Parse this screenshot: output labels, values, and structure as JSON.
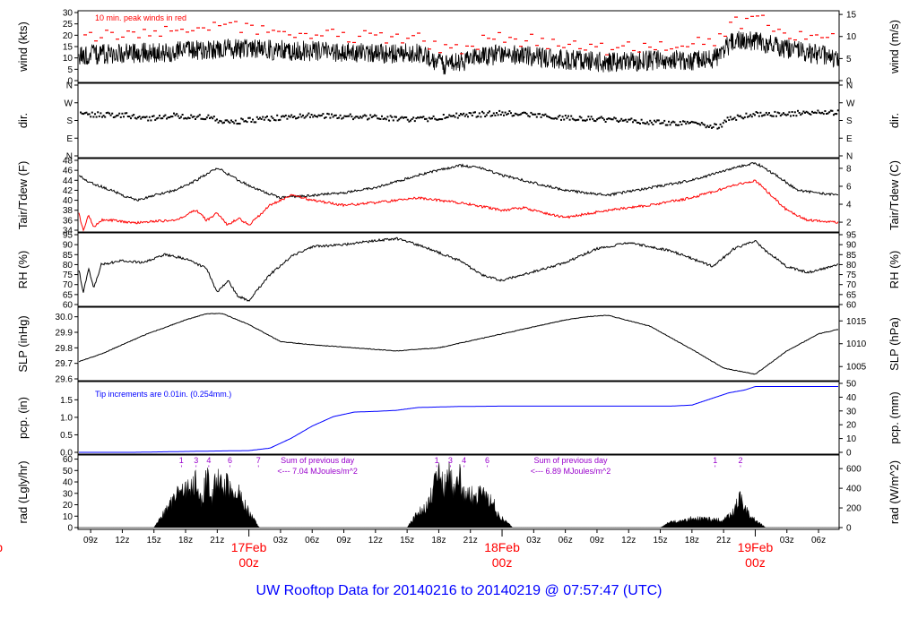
{
  "footer": {
    "title": "UW Rooftop Data for 20140216  to  20140219 @ 07:57:47  (UTC)"
  },
  "colors": {
    "axis": "#000000",
    "data": "#000000",
    "peak": "#ff0000",
    "dew": "#ff0000",
    "precip": "#0000ff",
    "note": "#9900cc",
    "date": "#ff0000"
  },
  "time_axis": {
    "range_hours": [
      7.8,
      79.95
    ],
    "ticks": [
      {
        "h": 9,
        "label": "09z"
      },
      {
        "h": 12,
        "label": "12z"
      },
      {
        "h": 15,
        "label": "15z"
      },
      {
        "h": 18,
        "label": "18z"
      },
      {
        "h": 21,
        "label": "21z"
      },
      {
        "h": 27,
        "label": "03z"
      },
      {
        "h": 30,
        "label": "06z"
      },
      {
        "h": 33,
        "label": "09z"
      },
      {
        "h": 36,
        "label": "12z"
      },
      {
        "h": 39,
        "label": "15z"
      },
      {
        "h": 42,
        "label": "18z"
      },
      {
        "h": 45,
        "label": "21z"
      },
      {
        "h": 51,
        "label": "03z"
      },
      {
        "h": 54,
        "label": "06z"
      },
      {
        "h": 57,
        "label": "09z"
      },
      {
        "h": 60,
        "label": "12z"
      },
      {
        "h": 63,
        "label": "15z"
      },
      {
        "h": 66,
        "label": "18z"
      },
      {
        "h": 69,
        "label": "21z"
      },
      {
        "h": 75,
        "label": "03z"
      },
      {
        "h": 78,
        "label": "06z"
      }
    ],
    "day_labels": [
      {
        "h": 0,
        "day": "eb",
        "z": "z"
      },
      {
        "h": 24,
        "day": "17Feb",
        "z": "00z"
      },
      {
        "h": 48,
        "day": "18Feb",
        "z": "00z"
      },
      {
        "h": 72,
        "day": "19Feb",
        "z": "00z"
      }
    ]
  },
  "chart_data": [
    {
      "panel": "wind",
      "type": "line",
      "ylabel": "wind (kts)",
      "ylabel_right": "wind (m/s)",
      "ylim": [
        0,
        30
      ],
      "ylim_right": [
        0,
        15.43
      ],
      "yticks": [
        0,
        5,
        10,
        15,
        20,
        25,
        30
      ],
      "yticks_right": [
        0,
        5,
        10,
        15
      ],
      "annotation": "10 min. peak winds in red",
      "keypoints_hours": [
        7.8,
        12,
        18,
        22,
        30,
        36,
        40,
        42.5,
        48,
        52,
        55,
        58,
        63,
        68,
        70,
        72.5,
        75,
        79.95
      ],
      "series": [
        {
          "values": [
            11,
            12,
            13,
            14,
            13,
            12,
            12,
            7,
            12,
            10,
            9,
            8,
            9,
            9,
            18,
            17,
            14,
            10
          ]
        },
        {
          "values": [
            19,
            20,
            22,
            24,
            21,
            19,
            19,
            13,
            19,
            17,
            16,
            14,
            15,
            17,
            25,
            27,
            21,
            19
          ]
        }
      ]
    },
    {
      "panel": "dir",
      "type": "scatter",
      "ylabel": "dir.",
      "ylabel_right": "dir.",
      "ylim": [
        0,
        360
      ],
      "yticks": [
        0,
        90,
        180,
        270,
        360
      ],
      "ytick_labels": [
        "N",
        "E",
        "S",
        "W",
        "N"
      ],
      "keypoints_hours": [
        7.8,
        12,
        14,
        17,
        20,
        22,
        26,
        30,
        36,
        40,
        44,
        48,
        54,
        58,
        62,
        66,
        68.5,
        69.5,
        72,
        79.95
      ],
      "values": [
        212,
        208,
        190,
        204,
        195,
        170,
        192,
        206,
        195,
        184,
        206,
        218,
        192,
        184,
        172,
        165,
        150,
        190,
        212,
        220
      ]
    },
    {
      "panel": "temp",
      "type": "line",
      "ylabel": "Tair/Tdew (F)",
      "ylabel_right": "Tair/Tdew (C)",
      "ylim": [
        34,
        48
      ],
      "ylim_right": [
        1.11,
        8.89
      ],
      "yticks": [
        34,
        36,
        38,
        40,
        42,
        44,
        46,
        48
      ],
      "yticks_right": [
        2,
        4,
        6,
        8
      ],
      "series": [
        {
          "name": "Tair",
          "hours": [
            7.8,
            9,
            11,
            12,
            13.5,
            15,
            17,
            19,
            21,
            23,
            25,
            27,
            30,
            33,
            36,
            40,
            44,
            46,
            48,
            50,
            54,
            58,
            62,
            66,
            70,
            72,
            74,
            76,
            79.95
          ],
          "values": [
            45,
            43.5,
            42,
            41,
            40,
            41,
            42,
            44,
            46.5,
            44,
            42,
            40.5,
            41,
            41.5,
            42.5,
            45,
            47,
            46.5,
            45,
            44,
            42,
            41,
            42.5,
            44,
            46.5,
            47.5,
            45,
            42,
            41
          ]
        },
        {
          "name": "Tdew",
          "hours": [
            7.8,
            8.3,
            8.8,
            9.3,
            10,
            11,
            13,
            17,
            19,
            20,
            21,
            22,
            23,
            24,
            25,
            26,
            28,
            30,
            33,
            36,
            40,
            44,
            48,
            50,
            54,
            58,
            62,
            66,
            70,
            72,
            73,
            75,
            77,
            79.95
          ],
          "values": [
            38,
            34,
            37,
            34.5,
            36,
            36,
            35.5,
            36,
            38,
            36,
            37.5,
            35,
            36.5,
            35,
            37,
            39,
            41,
            40,
            39,
            39.5,
            40.5,
            39.5,
            38,
            38.5,
            36.5,
            38,
            39,
            40.5,
            43,
            44,
            42,
            38,
            36,
            35.5
          ]
        }
      ]
    },
    {
      "panel": "rh",
      "type": "line",
      "ylabel": "RH (%)",
      "ylabel_right": "RH (%)",
      "ylim": [
        60,
        95
      ],
      "yticks": [
        60,
        65,
        70,
        75,
        80,
        85,
        90,
        95
      ],
      "hours": [
        7.8,
        8.3,
        8.8,
        9.3,
        10,
        11,
        12,
        14,
        16,
        18,
        20,
        21,
        22,
        23,
        24,
        26,
        28,
        30,
        33,
        36,
        38,
        40,
        42,
        44,
        46,
        48,
        50,
        54,
        57,
        60,
        64,
        68,
        70,
        72,
        73,
        75,
        77,
        79.95
      ],
      "values": [
        80,
        66,
        78,
        68,
        80,
        81,
        82,
        81,
        85,
        83,
        78,
        66,
        72,
        64,
        62,
        75,
        84,
        89,
        90,
        92,
        93,
        90,
        86,
        82,
        75,
        72,
        75,
        81,
        88,
        91,
        87,
        79,
        88,
        92,
        87,
        79,
        76,
        80
      ]
    },
    {
      "panel": "slp",
      "type": "line",
      "ylabel": "SLP (inHg)",
      "ylabel_right": "SLP (hPa)",
      "ylim": [
        29.6,
        30.05
      ],
      "ylim_right": [
        1002.3,
        1017.6
      ],
      "yticks": [
        29.6,
        29.7,
        29.8,
        29.9,
        30.0
      ],
      "ytick_labels": [
        "29.6",
        "29.7",
        "29.8",
        "29.9",
        "30.0"
      ],
      "yticks_right": [
        1005,
        1010,
        1015
      ],
      "hours": [
        7.8,
        10,
        14,
        18,
        20,
        21.5,
        24,
        27,
        30,
        34,
        38,
        42,
        46,
        50,
        54,
        56,
        58,
        62,
        66,
        69,
        72,
        75,
        78,
        79.95
      ],
      "values": [
        29.71,
        29.76,
        29.88,
        29.98,
        30.02,
        30.02,
        29.95,
        29.84,
        29.82,
        29.8,
        29.78,
        29.8,
        29.86,
        29.92,
        29.98,
        30.0,
        30.01,
        29.94,
        29.79,
        29.67,
        29.63,
        29.78,
        29.89,
        29.92
      ]
    },
    {
      "panel": "pcp",
      "type": "line",
      "ylabel": "pcp. (in)",
      "ylabel_right": "pcp. (mm)",
      "ylim": [
        0,
        1.97
      ],
      "ylim_right": [
        0,
        50
      ],
      "yticks": [
        0,
        0.5,
        1.0,
        1.5
      ],
      "ytick_labels": [
        "0.0",
        "0.5",
        "1.0",
        "1.5"
      ],
      "yticks_right": [
        0,
        10,
        20,
        30,
        40,
        50
      ],
      "annotation": "Tip increments are 0.01in. (0.254mm.)",
      "hours": [
        7.8,
        13,
        19,
        24,
        26,
        28,
        30,
        32,
        34,
        36,
        38,
        40,
        44,
        48,
        52,
        56,
        60,
        64,
        66,
        68,
        69.5,
        71,
        72,
        79.95
      ],
      "values": [
        0.0,
        0.0,
        0.03,
        0.05,
        0.12,
        0.4,
        0.75,
        1.02,
        1.15,
        1.17,
        1.2,
        1.28,
        1.31,
        1.32,
        1.32,
        1.32,
        1.32,
        1.32,
        1.35,
        1.55,
        1.7,
        1.78,
        1.88,
        1.88
      ]
    },
    {
      "panel": "rad",
      "type": "area",
      "ylabel": "rad (Lgly/hr)",
      "ylabel_right": "rad (W/m^2)",
      "ylim": [
        0,
        62
      ],
      "ylim_right": [
        0,
        720
      ],
      "yticks": [
        0,
        10,
        20,
        30,
        40,
        50,
        60
      ],
      "yticks_right": [
        0,
        200,
        400,
        600
      ],
      "hours": [
        7.8,
        15,
        16,
        17,
        18,
        19,
        19.5,
        20,
        20.5,
        21,
        21.5,
        22,
        22.5,
        23,
        24,
        25,
        39,
        40,
        41,
        42,
        42.5,
        43,
        43.5,
        44,
        44.5,
        45,
        45.5,
        46,
        46.5,
        47,
        47.5,
        48,
        49,
        63,
        64,
        66,
        68,
        69,
        70,
        70.5,
        71,
        72,
        73,
        79.95
      ],
      "values": [
        0,
        0,
        15,
        30,
        38,
        45,
        25,
        50,
        28,
        54,
        35,
        46,
        32,
        35,
        15,
        0,
        0,
        15,
        22,
        55,
        40,
        58,
        32,
        50,
        30,
        35,
        25,
        48,
        28,
        30,
        15,
        10,
        0,
        0,
        6,
        9,
        8,
        7,
        16,
        33,
        18,
        8,
        0,
        0
      ],
      "notes": [
        {
          "h": 30.5,
          "lines": [
            "Sum of previous day",
            "<--- 7.04 MJoules/m^2"
          ]
        },
        {
          "h": 54.5,
          "lines": [
            "Sum of previous day",
            "<--- 6.89 MJoules/m^2"
          ]
        }
      ],
      "hour_markers": [
        {
          "h": 17.6,
          "label": "1"
        },
        {
          "h": 19.0,
          "label": "3"
        },
        {
          "h": 20.2,
          "label": "4"
        },
        {
          "h": 22.2,
          "label": "6"
        },
        {
          "h": 24.9,
          "label": "7"
        },
        {
          "h": 41.8,
          "label": "1"
        },
        {
          "h": 43.1,
          "label": "3"
        },
        {
          "h": 44.4,
          "label": "4"
        },
        {
          "h": 46.6,
          "label": "6"
        },
        {
          "h": 68.2,
          "label": "1"
        },
        {
          "h": 70.6,
          "label": "2"
        }
      ]
    }
  ]
}
